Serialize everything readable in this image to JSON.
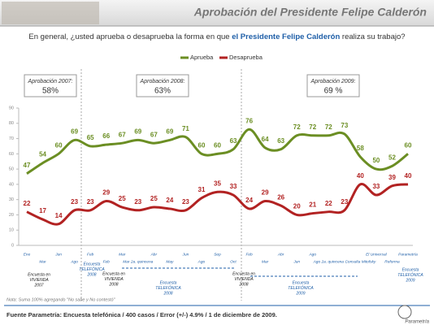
{
  "chart_data": {
    "type": "line",
    "title": "Aprobación del Presidente Felipe Calderón",
    "question": [
      "En general, ¿usted aprueba o desaprueba la forma en que",
      "el Presidente Felipe Calderón",
      "realiza su trabajo?"
    ],
    "categories": [
      "Ene",
      "Mar",
      "Jun",
      "Ago",
      "Feb",
      "Feb",
      "Mar",
      "Mar 2a. quincena",
      "Abr",
      "May",
      "Jun",
      "Ago",
      "Sep",
      "Oct",
      "Feb",
      "Mar",
      "Abr",
      "Jun",
      "Ago",
      "Ago 2a. quincena",
      null,
      "Consulta Mitofsky",
      "El Universal",
      "Reforma",
      "Parametría"
    ],
    "series": [
      {
        "name": "Aprueba",
        "color": "#6b8e23",
        "values": [
          47,
          54,
          60,
          69,
          65,
          66,
          67,
          69,
          67,
          69,
          71,
          60,
          60,
          63,
          76,
          64,
          63,
          72,
          72,
          72,
          73,
          58,
          50,
          52,
          60
        ]
      },
      {
        "name": "Desaprueba",
        "color": "#b22222",
        "values": [
          22,
          17,
          14,
          23,
          23,
          29,
          25,
          23,
          25,
          24,
          23,
          31,
          35,
          33,
          24,
          29,
          26,
          20,
          21,
          22,
          23,
          40,
          33,
          39,
          40
        ]
      }
    ],
    "ylim": [
      0,
      90
    ],
    "yticks": [
      0,
      10,
      20,
      30,
      40,
      50,
      60,
      70,
      80,
      90
    ],
    "boxes": [
      {
        "label": "Aprobación 2007:",
        "value": "58%"
      },
      {
        "label": "Aprobación 2008:",
        "value": "63%"
      },
      {
        "label": "Aprobación 2009:",
        "value": "69 %"
      }
    ],
    "annotations": [
      {
        "lines": [
          "Encuesta en",
          "VIVIENDA",
          "2007"
        ],
        "color": "#222222"
      },
      {
        "lines": [
          "Encuesta",
          "TELEFÓNICA",
          "2008"
        ],
        "color": "#1f5fa8"
      },
      {
        "lines": [
          "Encuesta en",
          "VIVIENDA",
          "2008"
        ],
        "color": "#222222"
      },
      {
        "lines": [
          "Encuesta",
          "TELEFÓNICA",
          "2008"
        ],
        "color": "#1f5fa8"
      },
      {
        "lines": [
          "Encuesta en",
          "VIVIENDA",
          "2008"
        ],
        "color": "#222222"
      },
      {
        "lines": [
          "Encuesta",
          "TELEFÓNICA",
          "2009"
        ],
        "color": "#1f5fa8"
      },
      {
        "lines": [
          "Encuesta",
          "TELEFÓNICA",
          "2009"
        ],
        "color": "#1f5fa8"
      }
    ],
    "note": "Nota: Suma 100% agregando \"No sabe y No contestó\"",
    "source": "Fuente Parametría: Encuesta telefónica / 400 casos / Error (+/-) 4.9% / 1 de diciembre de 2009.",
    "logo": "Parametría"
  }
}
